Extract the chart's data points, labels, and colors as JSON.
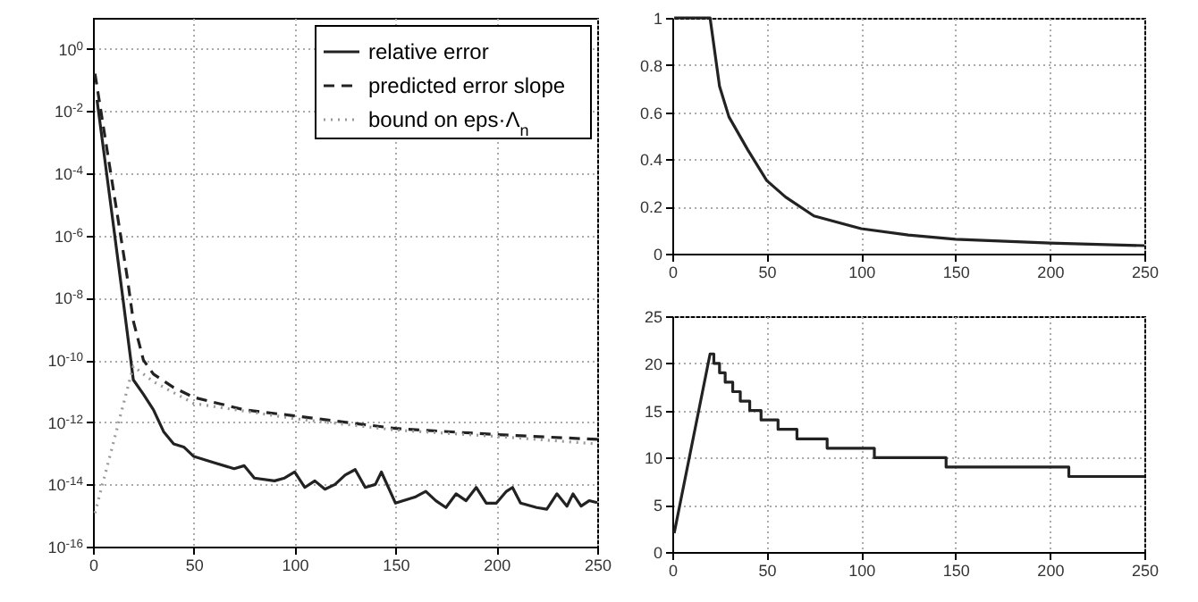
{
  "chart_data": [
    {
      "type": "line",
      "log": "y",
      "xlim": [
        0,
        250
      ],
      "xticks": [
        0,
        50,
        100,
        150,
        200,
        250
      ],
      "ylim": [
        1e-16,
        10
      ],
      "yticks": [
        {
          "value": 1,
          "label": "10$^{0}$"
        },
        {
          "value": 0.01,
          "label": "10$^{-2}$"
        },
        {
          "value": 0.0001,
          "label": "10$^{-4}$"
        },
        {
          "value": 1e-06,
          "label": "10$^{-6}$"
        },
        {
          "value": 1e-08,
          "label": "10$^{-8}$"
        },
        {
          "value": 1e-10,
          "label": "10$^{-10}$"
        },
        {
          "value": 1e-12,
          "label": "10$^{-12}$"
        },
        {
          "value": 1e-14,
          "label": "10$^{-14}$"
        },
        {
          "value": 1e-16,
          "label": "10$^{-16}$"
        }
      ],
      "grid": true,
      "legend": "top right",
      "series": [
        {
          "name": "relative error",
          "color": "#222222",
          "line_style": "solid",
          "x": [
            2,
            10,
            15,
            20,
            25,
            30,
            35,
            40,
            45,
            50,
            60,
            70,
            75,
            80,
            90,
            95,
            100,
            105,
            110,
            115,
            120,
            125,
            130,
            135,
            140,
            143,
            150,
            160,
            165,
            170,
            175,
            180,
            185,
            190,
            195,
            200,
            205,
            208,
            212,
            220,
            225,
            230,
            235,
            238,
            242,
            246,
            250
          ],
          "values": [
            0.023,
            2.5e-06,
            7.9e-09,
            2.3e-11,
            7.9e-12,
            2.5e-12,
            5e-13,
            2e-13,
            1.6e-13,
            7.9e-14,
            5e-14,
            3.2e-14,
            4e-14,
            1.6e-14,
            1.3e-14,
            1.6e-14,
            2.5e-14,
            8e-15,
            1.3e-14,
            7e-15,
            1e-14,
            2e-14,
            3e-14,
            8e-15,
            1e-14,
            2.5e-14,
            2.5e-15,
            4e-15,
            6e-15,
            3e-15,
            1.8e-15,
            5e-15,
            3e-15,
            8e-15,
            2.5e-15,
            2.5e-15,
            6e-15,
            8e-15,
            2.5e-15,
            1.8e-15,
            1.6e-15,
            5e-15,
            2e-15,
            5e-15,
            2e-15,
            3e-15,
            2.6e-15
          ]
        },
        {
          "name": "predicted error slope",
          "color": "#222222",
          "line_style": "dashed",
          "x": [
            1,
            17,
            20,
            25,
            30,
            40,
            50,
            75,
            100,
            150,
            200,
            250
          ],
          "values": [
            0.16,
            4.5e-08,
            1.8e-09,
            1e-10,
            3.5e-11,
            1.3e-11,
            6.3e-12,
            2.5e-12,
            1.6e-12,
            6.3e-13,
            4e-13,
            2.8e-13
          ]
        },
        {
          "name": "bound on eps·Λ$_{n}$",
          "color": "#999999",
          "line_style": "dotted",
          "x": [
            1,
            20,
            30,
            50,
            100,
            150,
            200,
            250
          ],
          "values": [
            1.2e-15,
            6.3e-11,
            2e-11,
            4e-12,
            1.3e-12,
            5.6e-13,
            3.5e-13,
            2e-13
          ]
        }
      ]
    },
    {
      "type": "line",
      "xlim": [
        0,
        250
      ],
      "xticks": [
        0,
        50,
        100,
        150,
        200,
        250
      ],
      "ylim": [
        0,
        1
      ],
      "yticks": [
        0,
        0.2,
        0.4,
        0.6,
        0.8,
        1
      ],
      "grid": true,
      "series": [
        {
          "color": "#222222",
          "line_style": "solid",
          "x": [
            1,
            20,
            25,
            30,
            40,
            50,
            60,
            75,
            100,
            125,
            150,
            200,
            250
          ],
          "values": [
            1,
            1,
            0.71,
            0.58,
            0.44,
            0.31,
            0.24,
            0.16,
            0.106,
            0.079,
            0.061,
            0.045,
            0.034
          ]
        }
      ]
    },
    {
      "type": "line",
      "xlim": [
        0,
        250
      ],
      "xticks": [
        0,
        50,
        100,
        150,
        200,
        250
      ],
      "ylim": [
        0,
        25
      ],
      "yticks": [
        0,
        5,
        10,
        15,
        20,
        25
      ],
      "grid": true,
      "series": [
        {
          "color": "#222222",
          "line_style": "solid",
          "x": [
            1,
            20,
            22,
            22,
            25,
            25,
            28,
            28,
            32,
            32,
            36,
            36,
            41,
            41,
            47,
            47,
            56,
            56,
            66,
            66,
            82,
            82,
            107,
            107,
            145,
            145,
            210,
            210,
            250
          ],
          "values": [
            2,
            21,
            21,
            20,
            20,
            19,
            19,
            18,
            18,
            17,
            17,
            16,
            16,
            15,
            15,
            14,
            14,
            13,
            13,
            12,
            12,
            11,
            11,
            10,
            10,
            9,
            9,
            8,
            8
          ]
        }
      ]
    }
  ]
}
